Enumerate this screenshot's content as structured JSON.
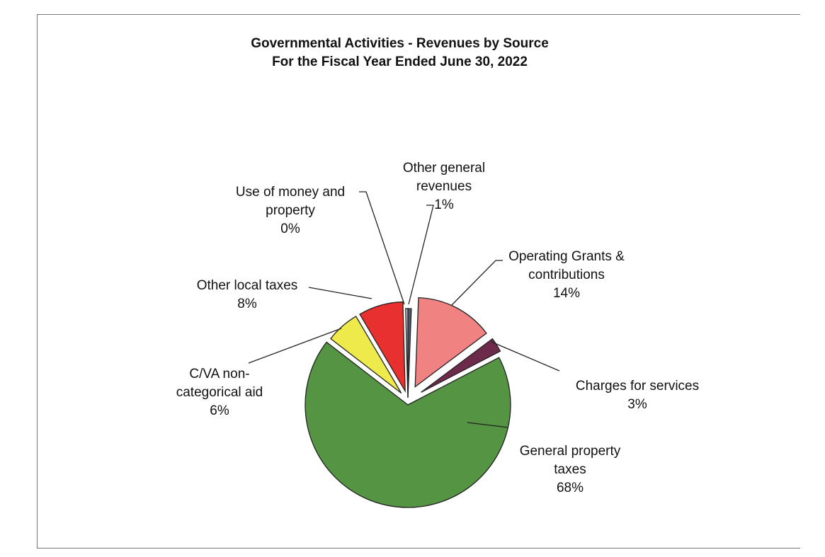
{
  "chart_data": {
    "type": "pie",
    "title": "Governmental Activities - Revenues by Source",
    "subtitle": "For the Fiscal Year Ended June 30, 2022",
    "slices": [
      {
        "label": "Other general revenues",
        "label_lines": [
          "Other general",
          "revenues"
        ],
        "percent_text": "1%",
        "value": 0.6,
        "color": "#4d5a78"
      },
      {
        "label": "Operating Grants & contributions",
        "label_lines": [
          "Operating Grants &",
          "contributions"
        ],
        "percent_text": "14%",
        "value": 14,
        "color": "#f08282"
      },
      {
        "label": "Charges for services",
        "label_lines": [
          "Charges for services"
        ],
        "percent_text": "3%",
        "value": 2.6,
        "color": "#6e2a4a"
      },
      {
        "label": "General property taxes",
        "label_lines": [
          "General property",
          "taxes"
        ],
        "percent_text": "68%",
        "value": 67.4,
        "color": "#549443"
      },
      {
        "label": "C/VA non-categorical aid",
        "label_lines": [
          "C/VA non-",
          "categorical aid"
        ],
        "percent_text": "6%",
        "value": 6,
        "color": "#eeea4c"
      },
      {
        "label": "Other local taxes",
        "label_lines": [
          "Other local taxes"
        ],
        "percent_text": "8%",
        "value": 8,
        "color": "#e8302e"
      },
      {
        "label": "Use of money and property",
        "label_lines": [
          "Use of money and",
          "property"
        ],
        "percent_text": "0%",
        "value": 0.4,
        "color": "#c8c8c8"
      }
    ]
  }
}
